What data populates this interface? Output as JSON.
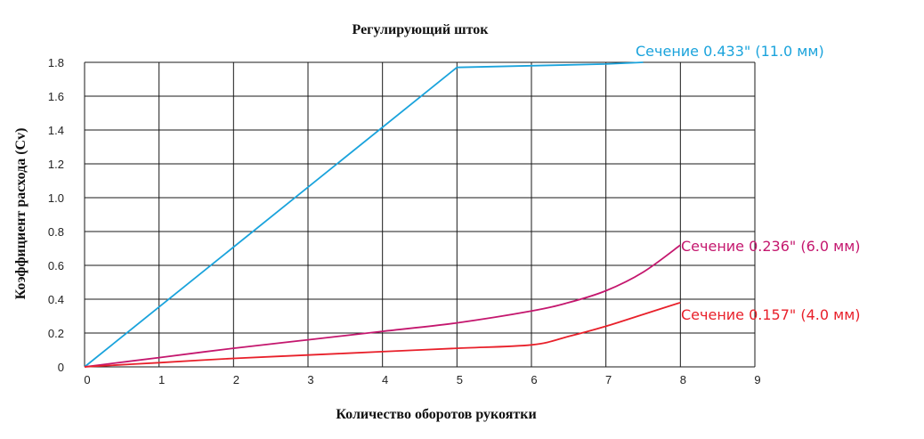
{
  "chart_data": {
    "type": "line",
    "title": "Регулирующий шток",
    "xlabel": "Количество оборотов рукоятки",
    "ylabel": "Коэффициент расхода (Cv)",
    "xlim": [
      0,
      9
    ],
    "ylim": [
      0,
      1.8
    ],
    "xticks": [
      "0",
      "1",
      "2",
      "3",
      "4",
      "5",
      "6",
      "7",
      "8",
      "9"
    ],
    "yticks": [
      "0",
      "0.2",
      "0.4",
      "0.6",
      "0.8",
      "1.0",
      "1.2",
      "1.4",
      "1.6",
      "1.8"
    ],
    "grid": true,
    "series": [
      {
        "name": "Сечение 0.433\" (11.0 мм)",
        "color": "#1aa3dc",
        "points": [
          [
            0,
            0
          ],
          [
            5,
            1.77
          ],
          [
            6,
            1.78
          ],
          [
            7,
            1.79
          ],
          [
            7.5,
            1.8
          ]
        ]
      },
      {
        "name": "Сечение 0.236\" (6.0 мм)",
        "color": "#c4176e",
        "points": [
          [
            0,
            0
          ],
          [
            1,
            0.055
          ],
          [
            2,
            0.11
          ],
          [
            3,
            0.16
          ],
          [
            4,
            0.21
          ],
          [
            5,
            0.26
          ],
          [
            6,
            0.33
          ],
          [
            6.5,
            0.38
          ],
          [
            7,
            0.45
          ],
          [
            7.5,
            0.56
          ],
          [
            8,
            0.72
          ]
        ]
      },
      {
        "name": "Сечение 0.157\" (4.0 мм)",
        "color": "#e8202a",
        "points": [
          [
            0,
            0
          ],
          [
            1,
            0.025
          ],
          [
            2,
            0.05
          ],
          [
            3,
            0.07
          ],
          [
            4,
            0.09
          ],
          [
            5,
            0.11
          ],
          [
            6,
            0.13
          ],
          [
            6.5,
            0.18
          ],
          [
            7,
            0.24
          ],
          [
            7.5,
            0.31
          ],
          [
            8,
            0.38
          ]
        ]
      }
    ]
  }
}
